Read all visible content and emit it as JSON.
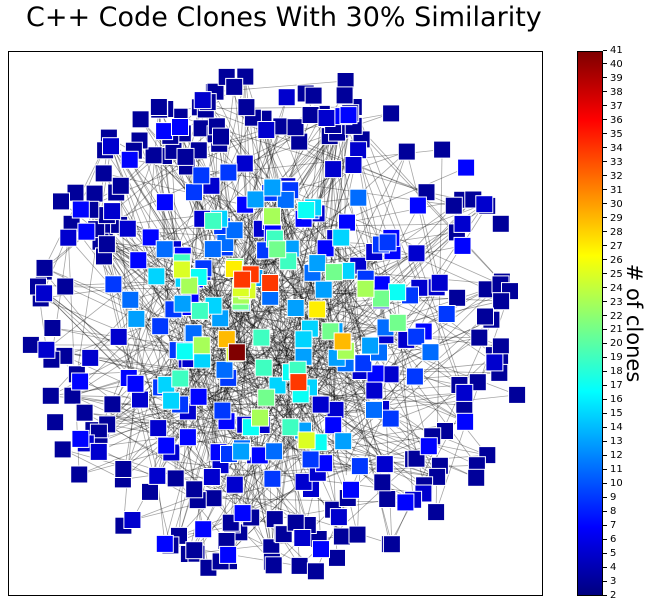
{
  "chart_data": {
    "type": "network",
    "title": "C++ Code Clones With 30% Similarity",
    "colorbar": {
      "label": "# of clones",
      "min": 2,
      "max": 41,
      "colormap": "jet",
      "ticks": [
        2,
        3,
        4,
        5,
        6,
        7,
        8,
        9,
        10,
        11,
        12,
        13,
        14,
        15,
        16,
        17,
        18,
        19,
        20,
        21,
        22,
        23,
        24,
        25,
        26,
        27,
        28,
        29,
        30,
        31,
        32,
        33,
        34,
        35,
        36,
        37,
        38,
        39,
        40,
        41
      ]
    },
    "node_count_estimate": 420,
    "node_value_distribution": [
      {
        "value": 3,
        "count": 170
      },
      {
        "value": 5,
        "count": 70
      },
      {
        "value": 7,
        "count": 50
      },
      {
        "value": 9,
        "count": 30
      },
      {
        "value": 11,
        "count": 20
      },
      {
        "value": 13,
        "count": 18
      },
      {
        "value": 15,
        "count": 14
      },
      {
        "value": 17,
        "count": 8
      },
      {
        "value": 19,
        "count": 10
      },
      {
        "value": 21,
        "count": 8
      },
      {
        "value": 23,
        "count": 7
      },
      {
        "value": 25,
        "count": 5
      },
      {
        "value": 27,
        "count": 2
      },
      {
        "value": 29,
        "count": 2
      },
      {
        "value": 34,
        "count": 4
      },
      {
        "value": 41,
        "count": 1
      }
    ],
    "edge_color": "#000000",
    "node_shape": "square"
  }
}
